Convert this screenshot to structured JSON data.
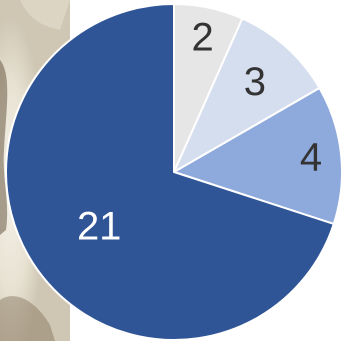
{
  "chart_data": {
    "type": "pie",
    "categories": [
      "",
      "",
      "",
      ""
    ],
    "values": [
      2,
      3,
      4,
      21
    ],
    "data_labels": [
      "2",
      "3",
      "4",
      "21"
    ],
    "colors": [
      "#e6e6e6",
      "#d5deee",
      "#8ea9db",
      "#2f5597"
    ],
    "label_colors": [
      "#333333",
      "#333333",
      "#333333",
      "#ffffff"
    ],
    "start_angle_deg": 0,
    "direction": "clockwise",
    "title": "",
    "legend": "none"
  }
}
